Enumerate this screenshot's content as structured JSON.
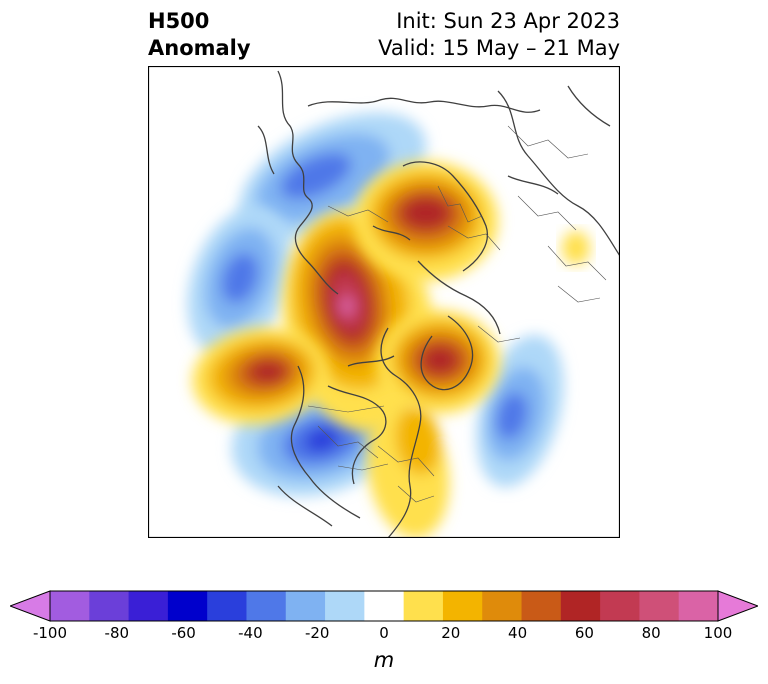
{
  "header": {
    "left_line1": "H500",
    "left_line2": "Anomaly",
    "right_line1": "Init: Sun 23 Apr 2023",
    "right_line2": "Valid: 15 May – 21 May"
  },
  "colorbar": {
    "ticks": [
      "-100",
      "-80",
      "-60",
      "-40",
      "-20",
      "0",
      "20",
      "40",
      "60",
      "80",
      "100"
    ],
    "unit": "m",
    "colors": [
      "#d77be6",
      "#a25ce0",
      "#6b3fd9",
      "#3a1fd6",
      "#0000cc",
      "#2a3fdc",
      "#4f78e8",
      "#7fb2f2",
      "#aed8f8",
      "#ffffff",
      "#ffe04d",
      "#f3b400",
      "#df8b0b",
      "#c95a17",
      "#b02525",
      "#c23a52",
      "#cf5078",
      "#da63a6",
      "#e67ad8"
    ],
    "extend_low": "#d77be6",
    "extend_high": "#e67ad8"
  }
}
